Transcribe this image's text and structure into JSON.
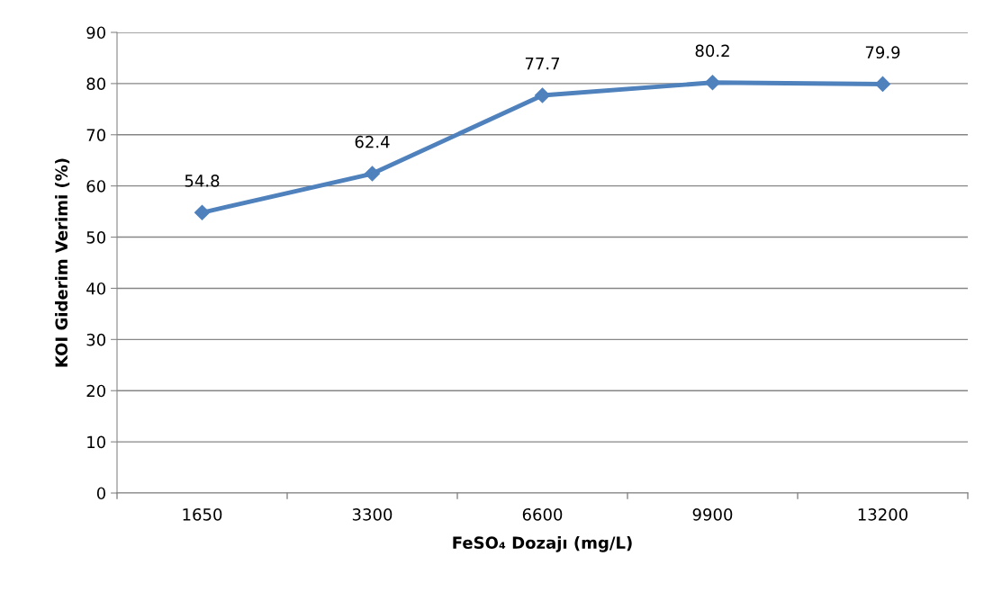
{
  "chart_data": {
    "type": "line",
    "xlabel": "FeSO₄ Dozajı (mg/L)",
    "ylabel": "KOI Giderim Verimi (%)",
    "categories": [
      "1650",
      "3300",
      "6600",
      "9900",
      "13200"
    ],
    "series": [
      {
        "color": "#4f81bd",
        "values": [
          54.8,
          62.4,
          77.7,
          80.2,
          79.9
        ]
      }
    ],
    "ylim": [
      0,
      90
    ],
    "yticks": [
      0,
      10,
      20,
      30,
      40,
      50,
      60,
      70,
      80,
      90
    ],
    "grid": "y",
    "marker": "diamond",
    "line_style": "solid",
    "data_labels": true,
    "legend": false
  }
}
